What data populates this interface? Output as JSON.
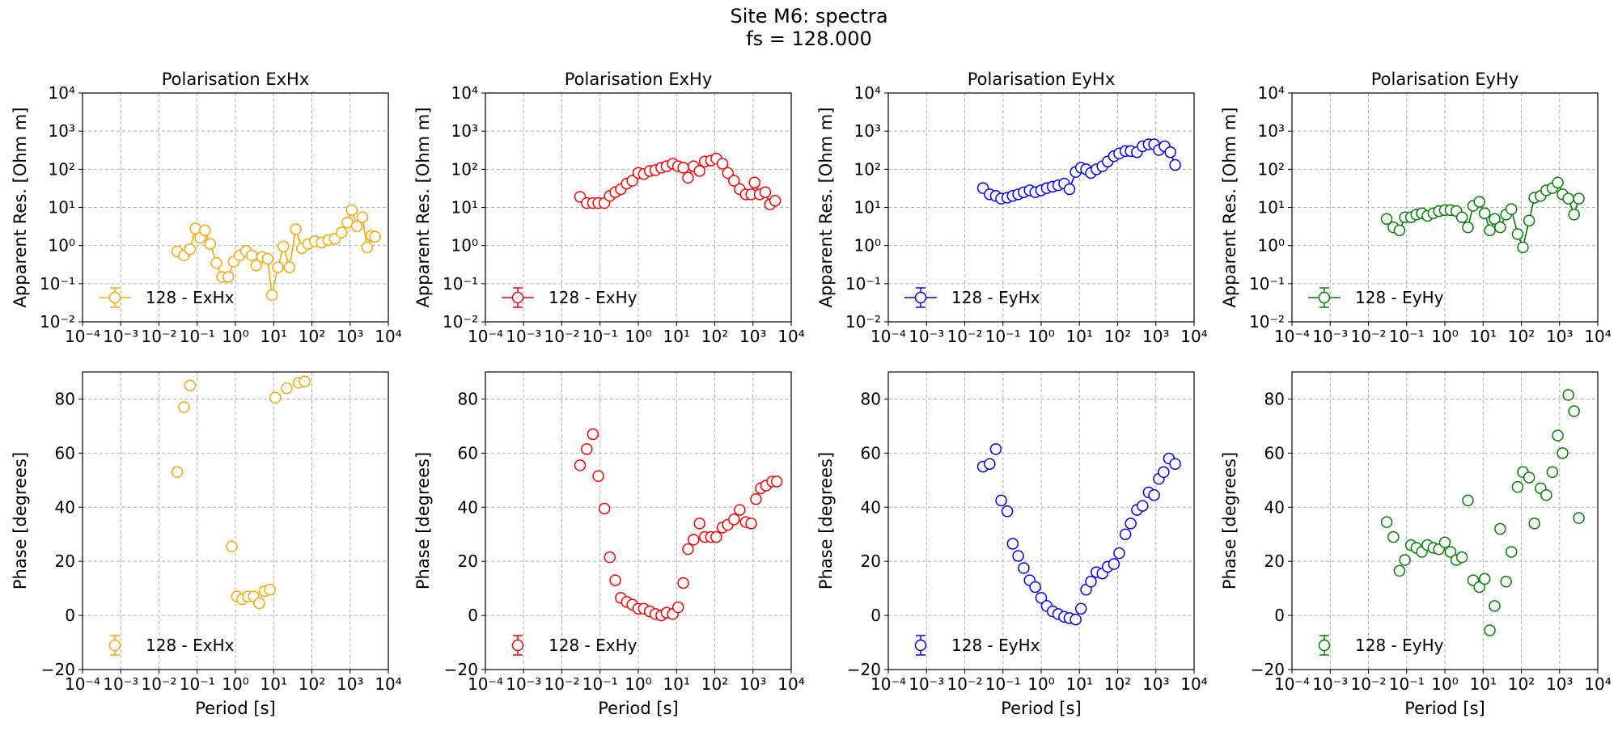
{
  "figure": {
    "title_line1": "Site M6: spectra",
    "title_line2": "fs = 128.000"
  },
  "chart_data": [
    {
      "type": "scatter",
      "panel": "res",
      "col": 0,
      "color": "#ffa500",
      "connected": true,
      "title": "Polarisation ExHx",
      "xlabel": "",
      "ylabel": "Apparent Res. [Ohm m]",
      "xscale": "log",
      "yscale": "log",
      "xlim": [
        0.0001,
        10000
      ],
      "ylim": [
        0.01,
        10000
      ],
      "grid": true,
      "legend": "lower-left",
      "legend_label": "128 - ExHx",
      "points": [
        [
          0.03,
          0.7
        ],
        [
          0.045,
          0.55
        ],
        [
          0.065,
          0.8
        ],
        [
          0.09,
          2.8
        ],
        [
          0.12,
          1.6
        ],
        [
          0.16,
          2.5
        ],
        [
          0.22,
          1.1
        ],
        [
          0.32,
          0.35
        ],
        [
          0.45,
          0.15
        ],
        [
          0.65,
          0.15
        ],
        [
          0.9,
          0.38
        ],
        [
          1.3,
          0.55
        ],
        [
          1.9,
          0.72
        ],
        [
          2.7,
          0.55
        ],
        [
          3.5,
          0.3
        ],
        [
          5,
          0.5
        ],
        [
          7,
          0.45
        ],
        [
          9,
          0.05
        ],
        [
          13,
          0.27
        ],
        [
          18,
          0.95
        ],
        [
          26,
          0.27
        ],
        [
          38,
          2.7
        ],
        [
          55,
          0.85
        ],
        [
          80,
          1.1
        ],
        [
          120,
          1.3
        ],
        [
          180,
          1.2
        ],
        [
          270,
          1.4
        ],
        [
          400,
          1.5
        ],
        [
          600,
          2.2
        ],
        [
          850,
          4.0
        ],
        [
          1100,
          8.5
        ],
        [
          1500,
          3.2
        ],
        [
          2100,
          5.5
        ],
        [
          2800,
          0.9
        ],
        [
          3600,
          1.8
        ],
        [
          4500,
          1.7
        ]
      ]
    },
    {
      "type": "scatter",
      "panel": "res",
      "col": 1,
      "color": "#ff0000",
      "connected": true,
      "title": "Polarisation ExHy",
      "xlabel": "",
      "ylabel": "Apparent Res. [Ohm m]",
      "xscale": "log",
      "yscale": "log",
      "xlim": [
        0.0001,
        10000
      ],
      "ylim": [
        0.01,
        10000
      ],
      "grid": true,
      "legend": "lower-left",
      "legend_label": "128 - ExHy",
      "points": [
        [
          0.03,
          19
        ],
        [
          0.045,
          13
        ],
        [
          0.065,
          13
        ],
        [
          0.09,
          13
        ],
        [
          0.13,
          13
        ],
        [
          0.18,
          20
        ],
        [
          0.25,
          25
        ],
        [
          0.35,
          30
        ],
        [
          0.5,
          42
        ],
        [
          0.7,
          50
        ],
        [
          1,
          80
        ],
        [
          1.4,
          75
        ],
        [
          2,
          90
        ],
        [
          2.8,
          95
        ],
        [
          4,
          110
        ],
        [
          5.5,
          120
        ],
        [
          8,
          140
        ],
        [
          11,
          120
        ],
        [
          15,
          110
        ],
        [
          20,
          60
        ],
        [
          28,
          120
        ],
        [
          40,
          90
        ],
        [
          55,
          160
        ],
        [
          80,
          170
        ],
        [
          110,
          190
        ],
        [
          160,
          140
        ],
        [
          220,
          80
        ],
        [
          320,
          50
        ],
        [
          450,
          30
        ],
        [
          650,
          22
        ],
        [
          900,
          22
        ],
        [
          1100,
          45
        ],
        [
          1500,
          22
        ],
        [
          2100,
          25
        ],
        [
          2800,
          12
        ],
        [
          3800,
          15
        ]
      ]
    },
    {
      "type": "scatter",
      "panel": "res",
      "col": 2,
      "color": "#0000ff",
      "connected": true,
      "title": "Polarisation EyHx",
      "xlabel": "",
      "ylabel": "Apparent Res. [Ohm m]",
      "xscale": "log",
      "yscale": "log",
      "xlim": [
        0.0001,
        10000
      ],
      "ylim": [
        0.01,
        10000
      ],
      "grid": true,
      "legend": "lower-left",
      "legend_label": "128 - EyHx",
      "points": [
        [
          0.03,
          32
        ],
        [
          0.045,
          22
        ],
        [
          0.065,
          20
        ],
        [
          0.09,
          17
        ],
        [
          0.13,
          18
        ],
        [
          0.18,
          20
        ],
        [
          0.25,
          22
        ],
        [
          0.35,
          25
        ],
        [
          0.5,
          28
        ],
        [
          0.7,
          25
        ],
        [
          1,
          28
        ],
        [
          1.4,
          32
        ],
        [
          2,
          35
        ],
        [
          2.8,
          38
        ],
        [
          4,
          42
        ],
        [
          5.5,
          30
        ],
        [
          8,
          85
        ],
        [
          11,
          110
        ],
        [
          15,
          100
        ],
        [
          20,
          80
        ],
        [
          28,
          100
        ],
        [
          40,
          120
        ],
        [
          55,
          160
        ],
        [
          80,
          220
        ],
        [
          110,
          260
        ],
        [
          160,
          300
        ],
        [
          220,
          300
        ],
        [
          320,
          280
        ],
        [
          450,
          400
        ],
        [
          650,
          450
        ],
        [
          900,
          450
        ],
        [
          1200,
          320
        ],
        [
          1700,
          400
        ],
        [
          2400,
          280
        ],
        [
          3200,
          130
        ]
      ]
    },
    {
      "type": "scatter",
      "panel": "res",
      "col": 3,
      "color": "#008000",
      "connected": true,
      "title": "Polarisation EyHy",
      "xlabel": "",
      "ylabel": "Apparent Res. [Ohm m]",
      "xscale": "log",
      "yscale": "log",
      "xlim": [
        0.0001,
        10000
      ],
      "ylim": [
        0.01,
        10000
      ],
      "grid": true,
      "legend": "lower-left",
      "legend_label": "128 - EyHy",
      "points": [
        [
          0.03,
          5
        ],
        [
          0.045,
          3
        ],
        [
          0.065,
          2.5
        ],
        [
          0.09,
          5.5
        ],
        [
          0.13,
          5.5
        ],
        [
          0.18,
          6.5
        ],
        [
          0.25,
          7
        ],
        [
          0.35,
          6
        ],
        [
          0.5,
          7
        ],
        [
          0.7,
          8
        ],
        [
          1,
          8.5
        ],
        [
          1.4,
          8.5
        ],
        [
          2,
          8
        ],
        [
          2.8,
          5.5
        ],
        [
          4,
          3
        ],
        [
          5.5,
          11
        ],
        [
          8,
          14
        ],
        [
          11,
          7
        ],
        [
          15,
          2.5
        ],
        [
          20,
          5
        ],
        [
          28,
          3
        ],
        [
          40,
          6.5
        ],
        [
          55,
          9
        ],
        [
          80,
          2
        ],
        [
          110,
          0.9
        ],
        [
          160,
          4.5
        ],
        [
          220,
          18
        ],
        [
          320,
          20
        ],
        [
          450,
          28
        ],
        [
          650,
          32
        ],
        [
          900,
          45
        ],
        [
          1200,
          22
        ],
        [
          1700,
          17
        ],
        [
          2400,
          6.5
        ],
        [
          3200,
          17
        ]
      ]
    },
    {
      "type": "scatter",
      "panel": "phase",
      "col": 0,
      "color": "#ffa500",
      "connected": false,
      "title": "",
      "xlabel": "Period [s]",
      "ylabel": "Phase [degrees]",
      "xscale": "log",
      "yscale": "linear",
      "xlim": [
        0.0001,
        10000
      ],
      "ylim": [
        -20,
        90
      ],
      "grid": true,
      "legend": "lower-left",
      "legend_label": "128 - ExHx",
      "points": [
        [
          0.03,
          53
        ],
        [
          0.045,
          77
        ],
        [
          0.065,
          85
        ],
        [
          0.8,
          25.5
        ],
        [
          1.1,
          7
        ],
        [
          1.5,
          6
        ],
        [
          2.1,
          7
        ],
        [
          3,
          7
        ],
        [
          4.2,
          4.5
        ],
        [
          5.8,
          9
        ],
        [
          8,
          9.5
        ],
        [
          11,
          80.5
        ],
        [
          22,
          84
        ],
        [
          45,
          86
        ],
        [
          65,
          86.5
        ]
      ]
    },
    {
      "type": "scatter",
      "panel": "phase",
      "col": 1,
      "color": "#ff0000",
      "connected": false,
      "title": "",
      "xlabel": "Period [s]",
      "ylabel": "Phase [degrees]",
      "xscale": "log",
      "yscale": "linear",
      "xlim": [
        0.0001,
        10000
      ],
      "ylim": [
        -20,
        90
      ],
      "grid": true,
      "legend": "lower-left",
      "legend_label": "128 - ExHy",
      "points": [
        [
          0.03,
          55.5
        ],
        [
          0.045,
          61.5
        ],
        [
          0.065,
          67
        ],
        [
          0.09,
          51.5
        ],
        [
          0.13,
          39.5
        ],
        [
          0.18,
          21.5
        ],
        [
          0.25,
          13
        ],
        [
          0.35,
          6.5
        ],
        [
          0.5,
          5
        ],
        [
          0.7,
          4
        ],
        [
          1,
          2.5
        ],
        [
          1.4,
          2.5
        ],
        [
          2,
          1.5
        ],
        [
          2.8,
          0.5
        ],
        [
          4,
          0
        ],
        [
          5.5,
          1
        ],
        [
          8,
          0.5
        ],
        [
          11,
          3
        ],
        [
          15,
          12
        ],
        [
          20,
          24.5
        ],
        [
          28,
          28
        ],
        [
          40,
          34
        ],
        [
          55,
          29
        ],
        [
          80,
          29
        ],
        [
          110,
          29
        ],
        [
          160,
          32.5
        ],
        [
          220,
          33.5
        ],
        [
          320,
          35.5
        ],
        [
          450,
          39
        ],
        [
          650,
          34.5
        ],
        [
          900,
          34
        ],
        [
          1200,
          43
        ],
        [
          1600,
          47
        ],
        [
          2200,
          48
        ],
        [
          3200,
          49.5
        ],
        [
          4200,
          49.5
        ]
      ]
    },
    {
      "type": "scatter",
      "panel": "phase",
      "col": 2,
      "color": "#0000ff",
      "connected": false,
      "title": "",
      "xlabel": "Period [s]",
      "ylabel": "Phase [degrees]",
      "xscale": "log",
      "yscale": "linear",
      "xlim": [
        0.0001,
        10000
      ],
      "ylim": [
        -20,
        90
      ],
      "grid": true,
      "legend": "lower-left",
      "legend_label": "128 - EyHx",
      "points": [
        [
          0.03,
          55
        ],
        [
          0.045,
          56
        ],
        [
          0.065,
          61.5
        ],
        [
          0.09,
          42.5
        ],
        [
          0.13,
          38.5
        ],
        [
          0.18,
          26.5
        ],
        [
          0.25,
          22
        ],
        [
          0.35,
          17.5
        ],
        [
          0.5,
          13
        ],
        [
          0.7,
          10.5
        ],
        [
          1,
          6.5
        ],
        [
          1.4,
          3.5
        ],
        [
          2,
          1.5
        ],
        [
          2.8,
          0.5
        ],
        [
          4,
          -0.5
        ],
        [
          5.5,
          -1
        ],
        [
          8,
          -1.5
        ],
        [
          11,
          2.5
        ],
        [
          15,
          9.5
        ],
        [
          20,
          12.5
        ],
        [
          28,
          16
        ],
        [
          40,
          15.5
        ],
        [
          55,
          18
        ],
        [
          80,
          19
        ],
        [
          110,
          23
        ],
        [
          160,
          30
        ],
        [
          220,
          34
        ],
        [
          320,
          39
        ],
        [
          450,
          40.5
        ],
        [
          650,
          45.5
        ],
        [
          900,
          44.5
        ],
        [
          1200,
          50.5
        ],
        [
          1600,
          53
        ],
        [
          2200,
          58
        ],
        [
          3200,
          56
        ]
      ]
    },
    {
      "type": "scatter",
      "panel": "phase",
      "col": 3,
      "color": "#008000",
      "connected": false,
      "title": "",
      "xlabel": "Period [s]",
      "ylabel": "Phase [degrees]",
      "xscale": "log",
      "yscale": "linear",
      "xlim": [
        0.0001,
        10000
      ],
      "ylim": [
        -20,
        90
      ],
      "grid": true,
      "legend": "lower-left",
      "legend_label": "128 - EyHy",
      "points": [
        [
          0.03,
          34.5
        ],
        [
          0.045,
          29
        ],
        [
          0.065,
          16.5
        ],
        [
          0.09,
          20.5
        ],
        [
          0.13,
          26
        ],
        [
          0.18,
          25
        ],
        [
          0.25,
          23.5
        ],
        [
          0.35,
          26
        ],
        [
          0.5,
          25
        ],
        [
          0.7,
          24.5
        ],
        [
          1,
          27
        ],
        [
          1.4,
          23.5
        ],
        [
          2,
          20.5
        ],
        [
          2.8,
          21.5
        ],
        [
          4,
          42.5
        ],
        [
          5.5,
          13
        ],
        [
          8,
          10.5
        ],
        [
          11,
          13.5
        ],
        [
          15,
          -5.5
        ],
        [
          20,
          3.5
        ],
        [
          28,
          32
        ],
        [
          40,
          12.5
        ],
        [
          55,
          23.5
        ],
        [
          80,
          47.5
        ],
        [
          110,
          53
        ],
        [
          160,
          51
        ],
        [
          220,
          34
        ],
        [
          320,
          47
        ],
        [
          450,
          44.5
        ],
        [
          650,
          53
        ],
        [
          900,
          66.5
        ],
        [
          1200,
          60
        ],
        [
          1700,
          81.5
        ],
        [
          2400,
          75.5
        ],
        [
          3200,
          36
        ]
      ]
    }
  ]
}
